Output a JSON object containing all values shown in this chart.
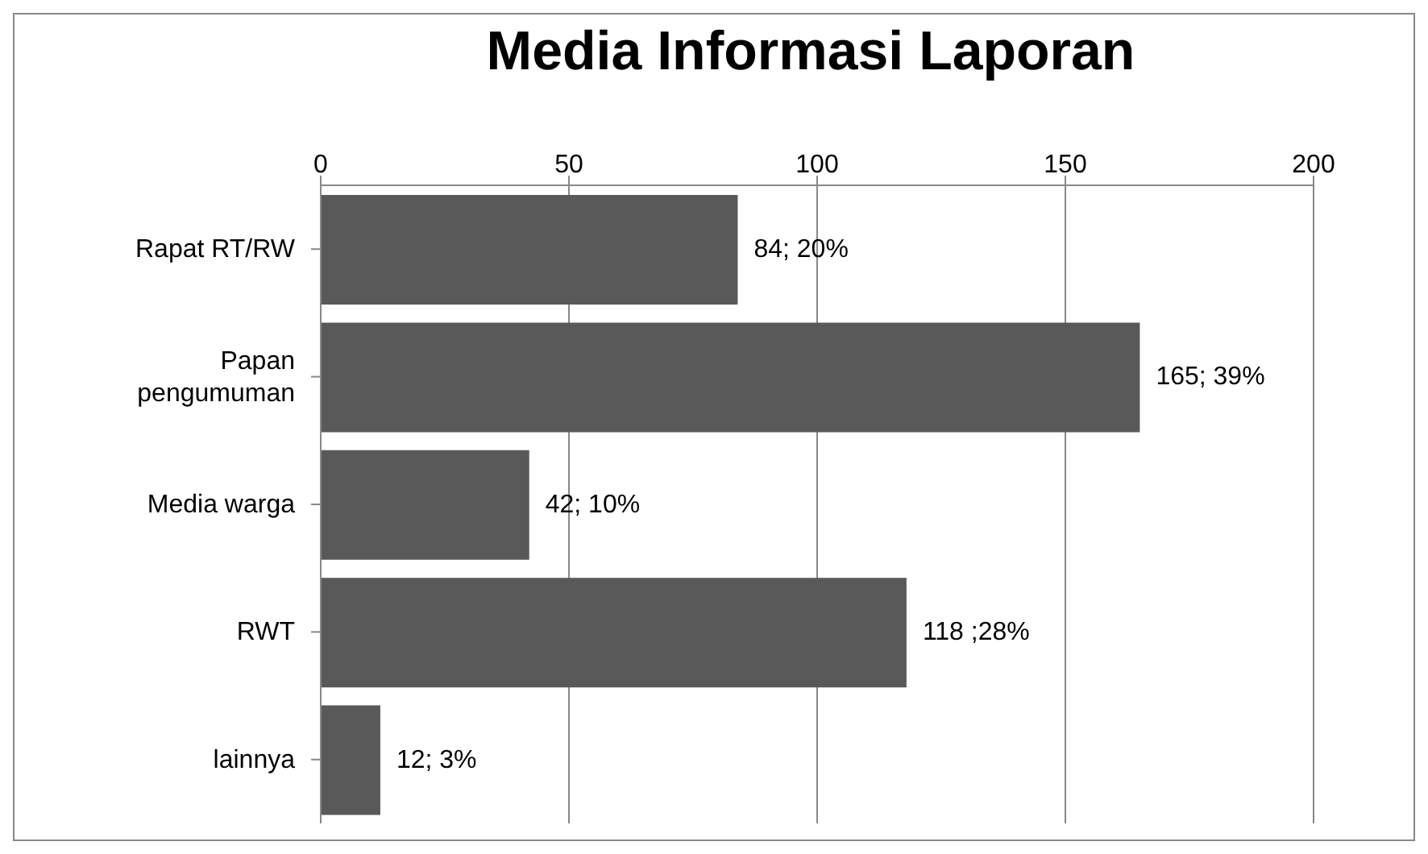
{
  "chart_data": {
    "type": "bar",
    "orientation": "horizontal",
    "title": "Media Informasi Laporan",
    "categories": [
      "Rapat RT/RW",
      "Papan pengumuman",
      "Media warga",
      "RWT",
      "lainnya"
    ],
    "values": [
      84,
      165,
      42,
      118,
      12
    ],
    "value_labels": [
      "84; 20%",
      "165; 39%",
      "42; 10%",
      "118 ;28%",
      "12; 3%"
    ],
    "color": "#595959",
    "xlim": [
      0,
      200
    ],
    "xticks": [
      0,
      50,
      100,
      150,
      200
    ],
    "grid": "x"
  }
}
